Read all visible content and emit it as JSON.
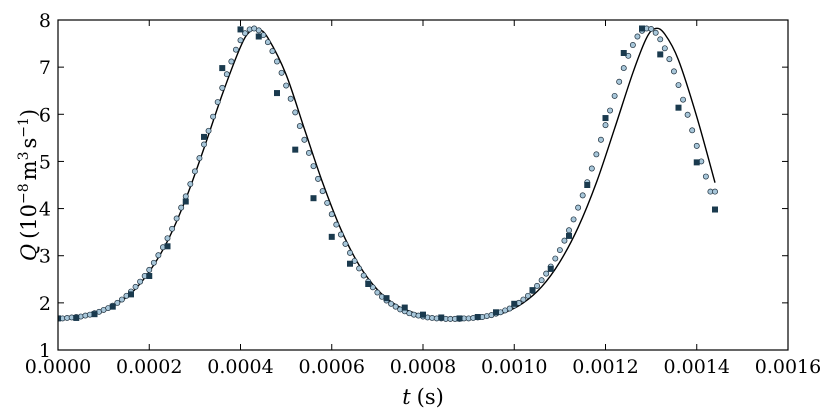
{
  "chart_data": {
    "type": "scatter",
    "title": "",
    "xlabel": "t (s)",
    "xlabel_parts": {
      "symbol": "t",
      "unit": "(s)"
    },
    "ylabel": "Q (10^-8 m^3 s^-1)",
    "ylabel_parts": {
      "symbol": "Q",
      "open": "(10",
      "exp1": "−8",
      "mid": "m",
      "exp2": "3",
      "mid2": "s",
      "exp3": "−1",
      "close": ")"
    },
    "xlim": [
      0.0,
      0.0016
    ],
    "ylim": [
      1,
      8
    ],
    "xticks": [
      0.0,
      0.0002,
      0.0004,
      0.0006,
      0.0008,
      0.001,
      0.0012,
      0.0014,
      0.0016
    ],
    "xtick_labels": [
      "0.0000",
      "0.0002",
      "0.0004",
      "0.0006",
      "0.0008",
      "0.0010",
      "0.0012",
      "0.0014",
      "0.0016"
    ],
    "yticks": [
      1,
      2,
      3,
      4,
      5,
      6,
      7,
      8
    ],
    "ytick_labels": [
      "1",
      "2",
      "3",
      "4",
      "5",
      "6",
      "7",
      "8"
    ],
    "grid": false,
    "legend": false,
    "colors": {
      "line": "#000000",
      "squares": "#1a3a4e",
      "circles_fill": "#a7c6d9",
      "circles_edge": "#1c2e3c"
    },
    "series": [
      {
        "style": "line",
        "x": [
          0.0,
          4e-05,
          8e-05,
          0.00012,
          0.00016,
          0.0002,
          0.00024,
          0.00028,
          0.00032,
          0.00036,
          0.0004,
          0.00042,
          0.00044,
          0.00046,
          0.0005,
          0.00054,
          0.00058,
          0.00062,
          0.00066,
          0.0007,
          0.00074,
          0.00078,
          0.00082,
          0.00086,
          0.0009,
          0.00094,
          0.00098,
          0.00102,
          0.00106,
          0.0011,
          0.00114,
          0.00118,
          0.00122,
          0.00126,
          0.00129,
          0.00131,
          0.00133,
          0.00136,
          0.0014,
          0.00144
        ],
        "y": [
          1.67,
          1.69,
          1.76,
          1.93,
          2.2,
          2.66,
          3.31,
          4.2,
          5.28,
          6.42,
          7.43,
          7.75,
          7.8,
          7.62,
          6.84,
          5.69,
          4.55,
          3.56,
          2.8,
          2.28,
          1.96,
          1.79,
          1.7,
          1.67,
          1.67,
          1.71,
          1.8,
          2.0,
          2.34,
          2.87,
          3.6,
          4.55,
          5.7,
          6.88,
          7.62,
          7.82,
          7.7,
          7.15,
          5.95,
          4.55
        ]
      },
      {
        "style": "circles",
        "x": [
          0.0,
          1e-05,
          2e-05,
          3e-05,
          4e-05,
          5e-05,
          6e-05,
          7e-05,
          8e-05,
          9e-05,
          0.0001,
          0.00011,
          0.00012,
          0.00013,
          0.00014,
          0.00015,
          0.00016,
          0.00017,
          0.00018,
          0.00019,
          0.0002,
          0.00021,
          0.00022,
          0.00023,
          0.00024,
          0.00025,
          0.00026,
          0.00027,
          0.00028,
          0.00029,
          0.0003,
          0.00031,
          0.00032,
          0.00033,
          0.00034,
          0.00035,
          0.00036,
          0.00037,
          0.00038,
          0.00039,
          0.0004,
          0.00041,
          0.00042,
          0.00043,
          0.00044,
          0.00045,
          0.00046,
          0.00047,
          0.00048,
          0.00049,
          0.0005,
          0.00051,
          0.00052,
          0.00053,
          0.00054,
          0.00055,
          0.00056,
          0.00057,
          0.00058,
          0.00059,
          0.0006,
          0.00061,
          0.00062,
          0.00063,
          0.00064,
          0.00065,
          0.00066,
          0.00067,
          0.00068,
          0.00069,
          0.0007,
          0.00071,
          0.00072,
          0.00073,
          0.00074,
          0.00075,
          0.00076,
          0.00077,
          0.00078,
          0.00079,
          0.0008,
          0.00081,
          0.00082,
          0.00083,
          0.00084,
          0.00085,
          0.00086,
          0.00087,
          0.00088,
          0.00089,
          0.0009,
          0.00091,
          0.00092,
          0.00093,
          0.00094,
          0.00095,
          0.00096,
          0.00097,
          0.00098,
          0.00099,
          0.001,
          0.00101,
          0.00102,
          0.00103,
          0.00104,
          0.00105,
          0.00106,
          0.00107,
          0.00108,
          0.00109,
          0.0011,
          0.00111,
          0.00112,
          0.00113,
          0.00114,
          0.00115,
          0.00116,
          0.00117,
          0.00118,
          0.00119,
          0.0012,
          0.00121,
          0.00122,
          0.00123,
          0.00124,
          0.00125,
          0.00126,
          0.00127,
          0.00128,
          0.00129,
          0.0013,
          0.00131,
          0.00132,
          0.00133,
          0.00134,
          0.00135,
          0.00136,
          0.00137,
          0.00138,
          0.00139,
          0.0014,
          0.00141,
          0.00142,
          0.00143,
          0.00144
        ],
        "y": [
          1.67,
          1.67,
          1.68,
          1.69,
          1.7,
          1.71,
          1.73,
          1.75,
          1.78,
          1.81,
          1.85,
          1.89,
          1.94,
          2.0,
          2.07,
          2.15,
          2.24,
          2.34,
          2.45,
          2.57,
          2.7,
          2.85,
          3.01,
          3.18,
          3.37,
          3.57,
          3.79,
          4.02,
          4.26,
          4.52,
          4.79,
          5.07,
          5.36,
          5.65,
          5.95,
          6.26,
          6.56,
          6.85,
          7.12,
          7.37,
          7.57,
          7.72,
          7.8,
          7.82,
          7.78,
          7.68,
          7.53,
          7.34,
          7.12,
          6.88,
          6.61,
          6.33,
          6.04,
          5.75,
          5.46,
          5.18,
          4.9,
          4.63,
          4.37,
          4.12,
          3.88,
          3.66,
          3.45,
          3.25,
          3.06,
          2.89,
          2.73,
          2.58,
          2.45,
          2.33,
          2.22,
          2.13,
          2.05,
          1.98,
          1.92,
          1.86,
          1.82,
          1.78,
          1.75,
          1.73,
          1.71,
          1.69,
          1.68,
          1.67,
          1.67,
          1.66,
          1.66,
          1.66,
          1.66,
          1.67,
          1.67,
          1.68,
          1.69,
          1.7,
          1.72,
          1.74,
          1.77,
          1.8,
          1.84,
          1.88,
          1.94,
          2.0,
          2.07,
          2.15,
          2.25,
          2.36,
          2.48,
          2.62,
          2.77,
          2.94,
          3.12,
          3.32,
          3.54,
          3.77,
          4.02,
          4.28,
          4.56,
          4.85,
          5.15,
          5.46,
          5.77,
          6.08,
          6.39,
          6.69,
          6.98,
          7.24,
          7.47,
          7.65,
          7.77,
          7.82,
          7.81,
          7.73,
          7.59,
          7.4,
          7.17,
          6.91,
          6.62,
          6.31,
          5.99,
          5.66,
          5.33,
          5.0,
          4.68,
          4.36,
          4.36
        ]
      },
      {
        "style": "squares",
        "x": [
          0.0,
          4e-05,
          8e-05,
          0.00012,
          0.00016,
          0.0002,
          0.00024,
          0.00028,
          0.00032,
          0.00036,
          0.0004,
          0.00044,
          0.00048,
          0.00052,
          0.00056,
          0.0006,
          0.00064,
          0.00068,
          0.00072,
          0.00076,
          0.0008,
          0.00084,
          0.00088,
          0.00092,
          0.00096,
          0.001,
          0.00104,
          0.00108,
          0.00112,
          0.00116,
          0.0012,
          0.00124,
          0.00128,
          0.00132,
          0.00136,
          0.0014,
          0.00144
        ],
        "y": [
          1.67,
          1.68,
          1.76,
          1.92,
          2.18,
          2.57,
          3.2,
          4.15,
          5.52,
          6.98,
          7.8,
          7.65,
          6.45,
          5.25,
          4.22,
          3.4,
          2.83,
          2.4,
          2.1,
          1.9,
          1.75,
          1.69,
          1.67,
          1.7,
          1.8,
          1.98,
          2.27,
          2.72,
          3.42,
          4.5,
          5.92,
          7.3,
          7.82,
          7.27,
          6.14,
          4.98,
          3.98
        ]
      }
    ]
  }
}
